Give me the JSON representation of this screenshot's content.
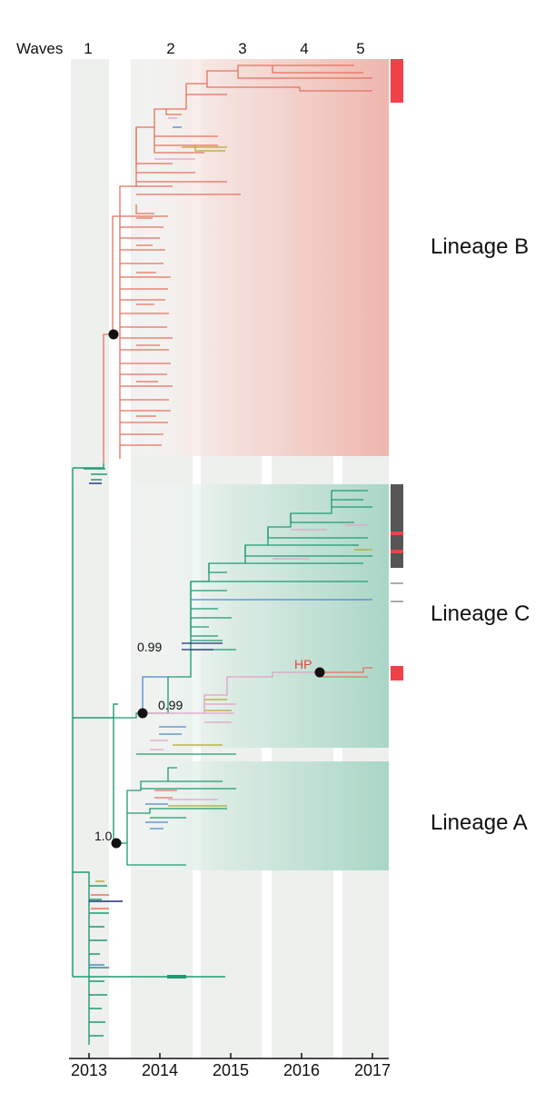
{
  "waves": {
    "title": "Waves",
    "labels": [
      "1",
      "2",
      "3",
      "4",
      "5"
    ]
  },
  "axis": {
    "years": [
      "2013",
      "2014",
      "2015",
      "2016",
      "2017"
    ]
  },
  "lineages": {
    "b": "Lineage B",
    "c": "Lineage C",
    "a": "Lineage A"
  },
  "annotations": {
    "support_upper": "0.99",
    "support_lower": "0.99",
    "support_a": "1.0",
    "hp": "HP"
  },
  "colors": {
    "lineage_b_branch": "#e8705e",
    "lineage_green_branch": "#1f9a72",
    "blue_branch": "#4f86c6",
    "navy_branch": "#1f2d7a",
    "pink_branch": "#e2a1c9",
    "olive_branch": "#b7a629",
    "red_marker": "#f0414b",
    "node_marker": "#111111"
  }
}
